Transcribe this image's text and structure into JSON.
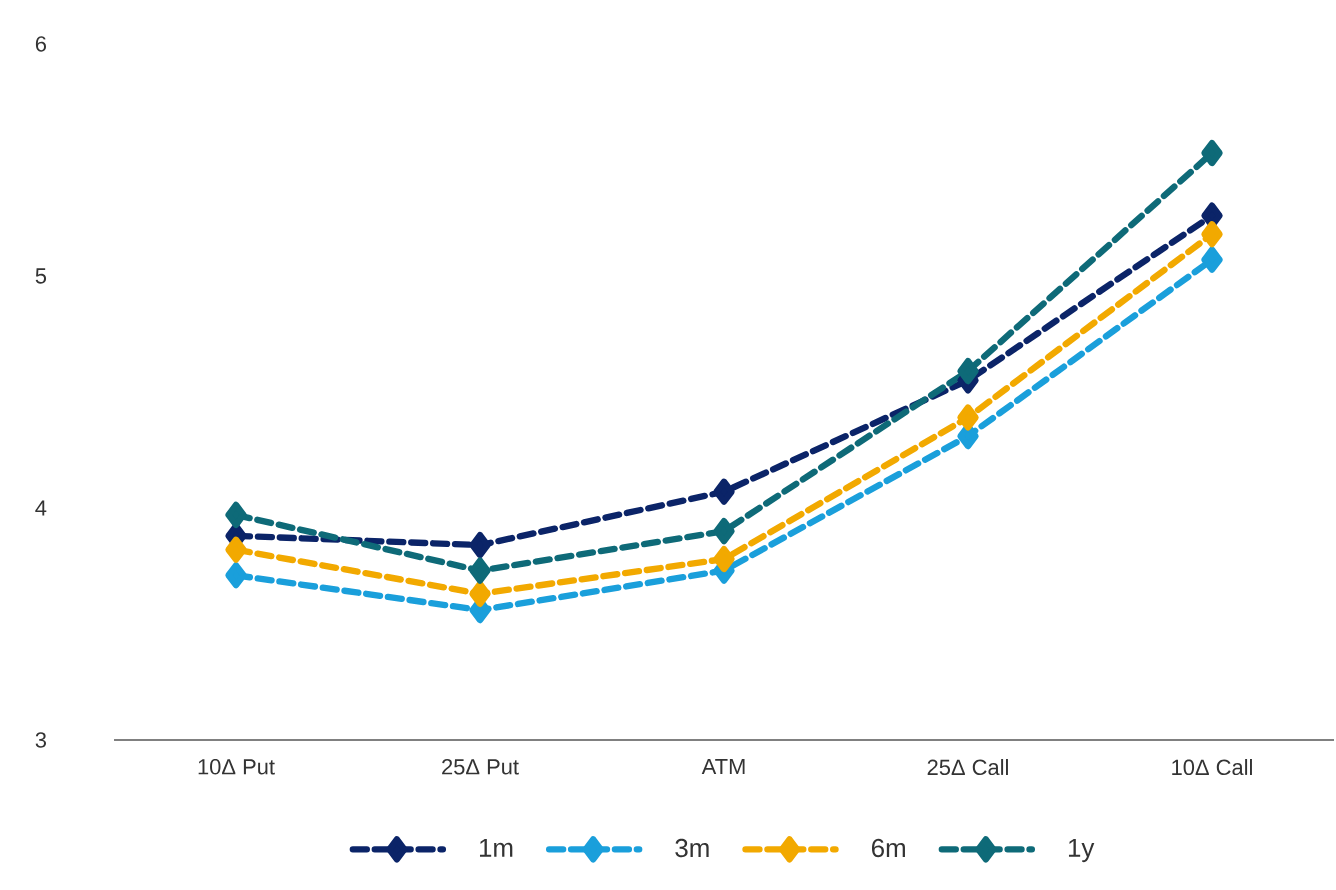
{
  "chart_data": {
    "type": "line",
    "categories": [
      "10Δ Put",
      "25Δ Put",
      "ATM",
      "25Δ Call",
      "10Δ Call"
    ],
    "series": [
      {
        "name": "1m",
        "color": "#0b2468",
        "values": [
          3.88,
          3.84,
          4.07,
          4.55,
          5.26
        ]
      },
      {
        "name": "3m",
        "color": "#1a9fdb",
        "values": [
          3.71,
          3.56,
          3.73,
          4.31,
          5.07
        ]
      },
      {
        "name": "6m",
        "color": "#f2a900",
        "values": [
          3.82,
          3.63,
          3.78,
          4.39,
          5.18
        ]
      },
      {
        "name": "1y",
        "color": "#0e6a78",
        "values": [
          3.97,
          3.73,
          3.9,
          4.59,
          5.53
        ]
      }
    ],
    "ylim": [
      3,
      6
    ],
    "yticks": [
      3,
      4,
      5,
      6
    ],
    "grid": false,
    "legend": "bottom",
    "marker": "diamond",
    "line_style": "dashed"
  }
}
